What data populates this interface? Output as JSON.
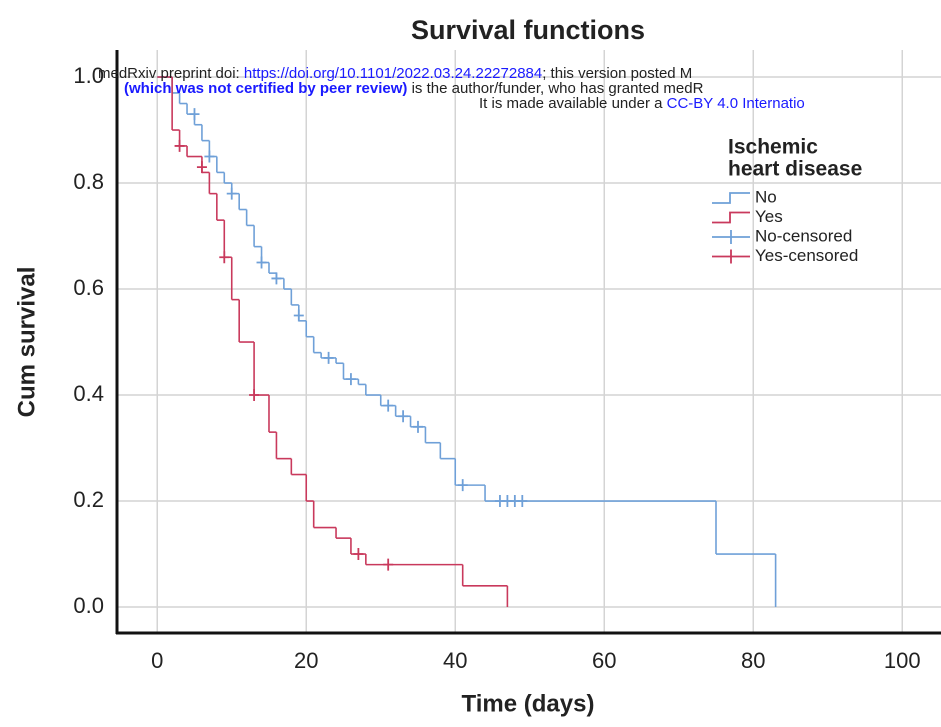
{
  "chart_data": {
    "type": "step",
    "title": "Survival functions",
    "x_label": "Time (days)",
    "y_label": "Cum survival",
    "xlim": [
      -5.4,
      105.2
    ],
    "ylim": [
      -0.049,
      1.051
    ],
    "xticks": [
      0,
      20,
      40,
      60,
      80,
      100
    ],
    "yticks": [
      {
        "value": 0,
        "label": "0.0"
      },
      {
        "value": 0.2,
        "label": "0.2"
      },
      {
        "value": 0.4,
        "label": "0.4"
      },
      {
        "value": 0.6,
        "label": "0.6"
      },
      {
        "value": 0.8,
        "label": "0.8"
      },
      {
        "value": 1,
        "label": "1.0"
      }
    ],
    "grid": true,
    "legend_title": [
      "Ischemic",
      "heart disease"
    ],
    "legend_position": "upper right",
    "series": [
      {
        "name": "No",
        "color": "#6fa0d8",
        "marker": "step",
        "x": [
          0,
          2,
          3,
          4,
          5,
          6,
          7,
          8,
          9,
          10,
          11,
          12,
          13,
          14,
          15,
          16,
          17,
          18,
          19,
          20,
          21,
          22,
          24,
          25,
          27,
          28,
          30,
          32,
          34,
          36,
          38,
          40,
          44,
          75,
          83
        ],
        "values": [
          1.0,
          0.97,
          0.95,
          0.93,
          0.91,
          0.88,
          0.85,
          0.82,
          0.8,
          0.78,
          0.75,
          0.72,
          0.68,
          0.65,
          0.63,
          0.62,
          0.6,
          0.57,
          0.54,
          0.51,
          0.48,
          0.47,
          0.46,
          0.43,
          0.42,
          0.4,
          0.38,
          0.36,
          0.34,
          0.31,
          0.28,
          0.23,
          0.2,
          0.1,
          0.0
        ]
      },
      {
        "name": "Yes",
        "color": "#c9395c",
        "marker": "step",
        "x": [
          0,
          2,
          3,
          4,
          6,
          7,
          8,
          9,
          10,
          11,
          13,
          15,
          16,
          18,
          20,
          21,
          24,
          26,
          28,
          41,
          47
        ],
        "values": [
          1.0,
          0.9,
          0.87,
          0.85,
          0.82,
          0.78,
          0.73,
          0.66,
          0.58,
          0.5,
          0.4,
          0.33,
          0.28,
          0.25,
          0.2,
          0.15,
          0.13,
          0.1,
          0.08,
          0.04,
          0.0
        ]
      },
      {
        "name": "No-censored",
        "color": "#6fa0d8",
        "marker": "plus",
        "x": [
          5,
          7,
          10,
          14,
          16,
          19,
          23,
          26,
          31,
          33,
          35,
          41,
          46,
          47,
          48,
          49
        ],
        "values": [
          0.93,
          0.85,
          0.78,
          0.65,
          0.62,
          0.55,
          0.47,
          0.43,
          0.38,
          0.36,
          0.34,
          0.23,
          0.2,
          0.2,
          0.2,
          0.2
        ]
      },
      {
        "name": "Yes-censored",
        "color": "#c9395c",
        "marker": "plus",
        "x": [
          3,
          6,
          9,
          13,
          27,
          31
        ],
        "values": [
          0.87,
          0.83,
          0.66,
          0.4,
          0.1,
          0.08
        ]
      }
    ]
  },
  "overlay": {
    "line1": [
      "medRxiv preprint doi: ",
      "https://doi.org/10.1101/2022.03.24.22272884",
      "; this version posted M"
    ],
    "line2": [
      "(which was not certified by peer review)",
      " is the author/funder, who has granted medR"
    ],
    "line3": [
      "It is made available under a ",
      "CC-BY 4.0 Internatio"
    ]
  }
}
